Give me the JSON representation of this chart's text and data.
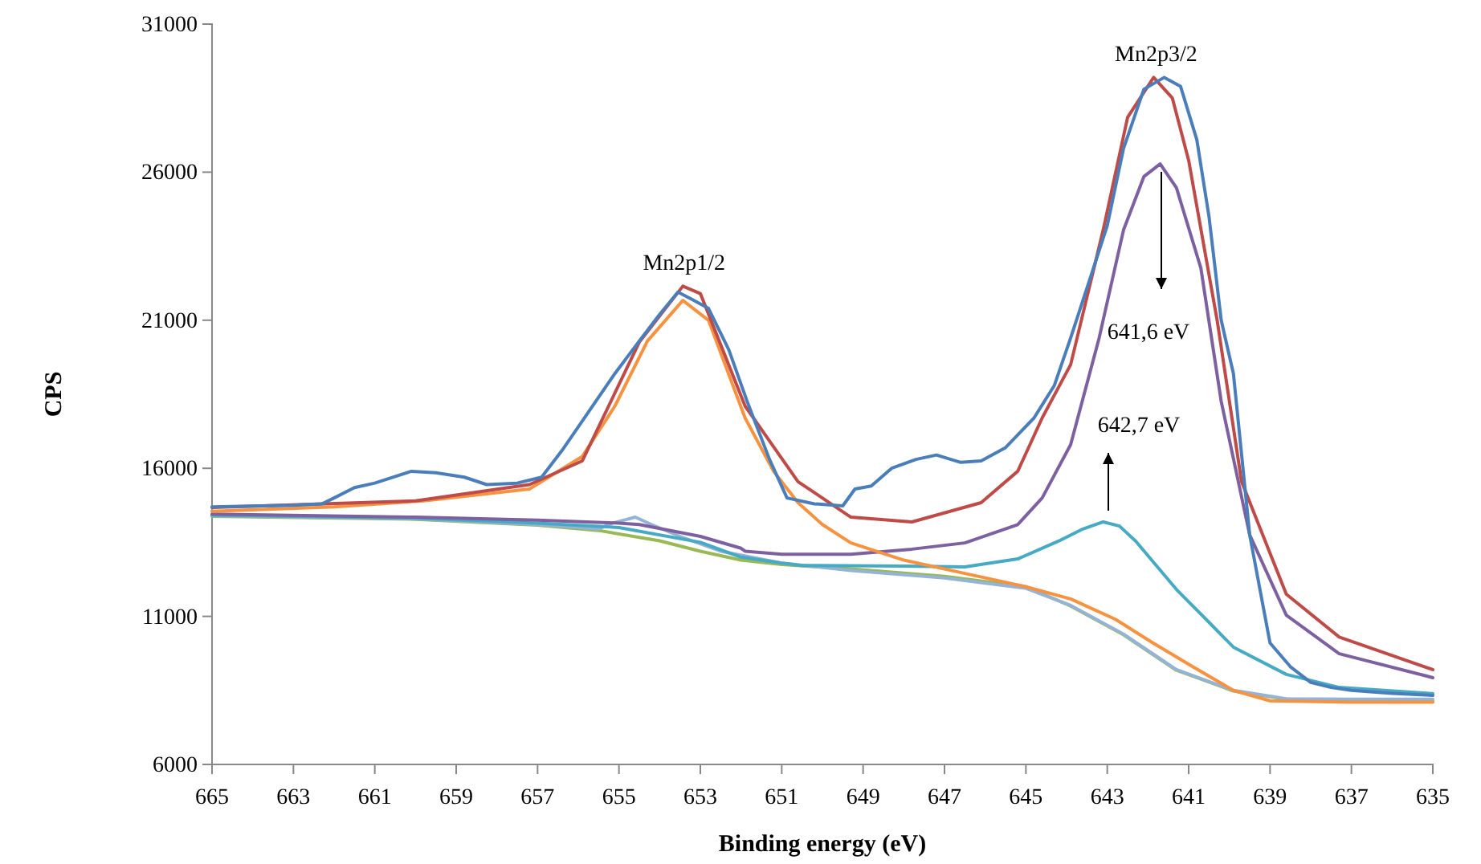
{
  "chart_data": {
    "type": "line",
    "xlabel": "Binding energy (eV)",
    "ylabel": "CPS",
    "xlim": [
      665,
      635
    ],
    "xticks": [
      665,
      663,
      661,
      659,
      657,
      655,
      653,
      651,
      649,
      647,
      645,
      643,
      641,
      639,
      637,
      635
    ],
    "ylim": [
      6000,
      31000
    ],
    "yticks": [
      6000,
      11000,
      16000,
      21000,
      26000,
      31000
    ],
    "grid": false,
    "marker": "none",
    "line_style": "solid",
    "annotations": [
      {
        "text": "Mn2p1/2",
        "x": 653.4,
        "y": 22150
      },
      {
        "text": "Mn2p3/2",
        "x": 641.8,
        "y": 29200
      },
      "641,6 eV",
      "642,7 eV"
    ],
    "series": [
      {
        "color": "#98b954",
        "x": [
          665,
          660,
          657,
          655.5,
          654,
          653,
          652,
          651,
          649.3,
          647,
          645,
          643.9,
          642.6,
          641.3,
          639.9,
          638.6,
          637,
          635
        ],
        "values": [
          14380,
          14280,
          14080,
          13900,
          13550,
          13200,
          12900,
          12750,
          12600,
          12350,
          12000,
          11350,
          10380,
          9180,
          8480,
          8200,
          8150,
          8150
        ]
      },
      {
        "color": "#95b3d7",
        "x": [
          665,
          660,
          657,
          655.5,
          655.2,
          654.6,
          654.2,
          653.5,
          652.5,
          651,
          649.3,
          647,
          645,
          643.9,
          642.6,
          641.3,
          639.9,
          638.6,
          637,
          635
        ],
        "values": [
          14400,
          14300,
          14100,
          13950,
          14130,
          14350,
          14100,
          13700,
          13200,
          12800,
          12550,
          12300,
          11950,
          11370,
          10400,
          9200,
          8500,
          8220,
          8200,
          8200
        ]
      },
      {
        "color": "#46aac5",
        "x": [
          665,
          660,
          657,
          655,
          653,
          652,
          651,
          650.5,
          648,
          646.5,
          645.2,
          644.2,
          643.6,
          643.1,
          642.7,
          642.3,
          641.3,
          640.5,
          639.9,
          638.6,
          637.3,
          635
        ],
        "values": [
          14420,
          14320,
          14150,
          14000,
          13500,
          13000,
          12800,
          12720,
          12700,
          12670,
          12940,
          13540,
          13950,
          14190,
          14050,
          13540,
          11910,
          10800,
          9960,
          9040,
          8600,
          8390
        ]
      },
      {
        "color": "#7d60a0",
        "x": [
          665,
          660,
          657,
          655,
          654.5,
          653,
          652,
          651.9,
          651,
          649.3,
          647.8,
          646.5,
          645.2,
          644.6,
          643.9,
          643.2,
          642.6,
          642.1,
          641.7,
          641.3,
          640.7,
          640.2,
          639.5,
          638.6,
          637.3,
          635
        ],
        "values": [
          14450,
          14350,
          14250,
          14150,
          14100,
          13700,
          13300,
          13200,
          13100,
          13100,
          13270,
          13480,
          14100,
          15000,
          16800,
          20400,
          24050,
          25850,
          26280,
          25470,
          22760,
          18260,
          13750,
          11040,
          9740,
          8930
        ]
      },
      {
        "color": "#f69240",
        "x": [
          665,
          662,
          659.8,
          657.2,
          655.9,
          655.1,
          654.3,
          653.43,
          652.8,
          651.9,
          651.2,
          650.6,
          650,
          649.3,
          648,
          646.5,
          645,
          643.9,
          642.8,
          641.9,
          640.9,
          639.9,
          639,
          637,
          635
        ],
        "values": [
          14550,
          14700,
          14900,
          15300,
          16400,
          18100,
          20300,
          21670,
          21000,
          17700,
          15900,
          14840,
          14100,
          13480,
          12900,
          12450,
          12000,
          11590,
          10900,
          10120,
          9300,
          8500,
          8150,
          8100,
          8100
        ]
      },
      {
        "color": "#be4b48",
        "x": [
          665,
          660,
          657.2,
          655.9,
          654.5,
          653.43,
          653,
          651.9,
          650.6,
          649.3,
          647.8,
          646.1,
          645.2,
          644.6,
          643.9,
          643.1,
          642.5,
          641.86,
          641.4,
          641,
          640.3,
          639.7,
          638.6,
          637.3,
          635
        ],
        "values": [
          14680,
          14900,
          15450,
          16250,
          20260,
          22150,
          21900,
          18100,
          15550,
          14350,
          14190,
          14840,
          15900,
          17700,
          19500,
          24050,
          27850,
          29200,
          28500,
          26400,
          21000,
          15550,
          11750,
          10300,
          9200
        ]
      },
      {
        "color": "#4a7ebb",
        "x": [
          665,
          663,
          662.3,
          662,
          661.5,
          661,
          660.1,
          659.5,
          658.8,
          658.25,
          657.5,
          656.9,
          656.4,
          655.8,
          655.1,
          654.5,
          654,
          653.55,
          653.2,
          652.8,
          652.3,
          651.85,
          651.3,
          650.87,
          650.2,
          649.5,
          649.2,
          648.8,
          648.3,
          647.7,
          647.2,
          646.6,
          646.1,
          645.5,
          644.8,
          644.3,
          643.9,
          643.4,
          643,
          642.6,
          642.1,
          641.6,
          641.2,
          640.8,
          640.5,
          640.2,
          639.9,
          639.5,
          639,
          638.5,
          638,
          637.5,
          637,
          636,
          635
        ],
        "values": [
          14700,
          14750,
          14800,
          15000,
          15350,
          15500,
          15900,
          15850,
          15700,
          15450,
          15500,
          15700,
          16600,
          17800,
          19200,
          20300,
          21200,
          21950,
          21700,
          21400,
          20000,
          18260,
          16300,
          15000,
          14800,
          14730,
          15300,
          15400,
          16000,
          16300,
          16450,
          16200,
          16250,
          16700,
          17700,
          18800,
          20400,
          22500,
          24200,
          26800,
          28800,
          29200,
          28900,
          27100,
          24500,
          21000,
          19200,
          13750,
          10100,
          9300,
          8770,
          8600,
          8500,
          8400,
          8330
        ]
      }
    ]
  }
}
